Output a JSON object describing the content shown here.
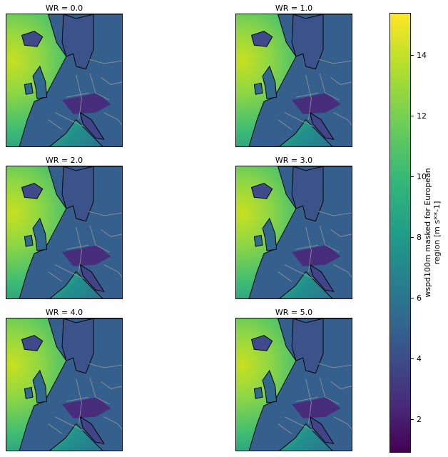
{
  "chart_data": {
    "type": "heatmap",
    "panels": [
      {
        "title": "WR = 0.0"
      },
      {
        "title": "WR = 1.0"
      },
      {
        "title": "WR = 2.0"
      },
      {
        "title": "WR = 3.0"
      },
      {
        "title": "WR = 4.0"
      },
      {
        "title": "WR = 5.0"
      }
    ],
    "colorbar": {
      "label_line1": "wspd100m masked for European",
      "label_line2": "region [m s**-1]",
      "colormap": "viridis",
      "range": [
        0.9,
        15.4
      ],
      "ticks": [
        "2",
        "4",
        "6",
        "8",
        "10",
        "12",
        "14"
      ]
    }
  }
}
